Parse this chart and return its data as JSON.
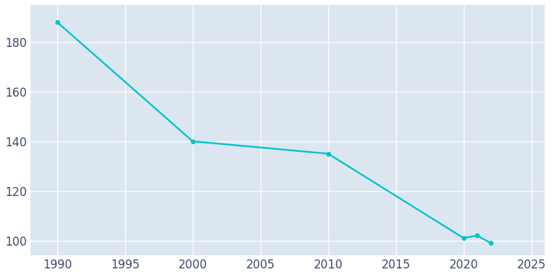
{
  "years": [
    1990,
    2000,
    2010,
    2020,
    2021,
    2022
  ],
  "population": [
    188,
    140,
    135,
    101,
    102,
    99
  ],
  "line_color": "#00C5C8",
  "marker_color": "#00C5C8",
  "axes_background_color": "#dce6f1",
  "figure_background_color": "#ffffff",
  "grid_color": "#ffffff",
  "xlim": [
    1988,
    2026
  ],
  "ylim": [
    94,
    195
  ],
  "xticks": [
    1990,
    1995,
    2000,
    2005,
    2010,
    2015,
    2020,
    2025
  ],
  "yticks": [
    100,
    120,
    140,
    160,
    180
  ],
  "tick_label_color": "#3b4a6b",
  "tick_fontsize": 12,
  "line_width": 1.8,
  "marker_size": 4
}
